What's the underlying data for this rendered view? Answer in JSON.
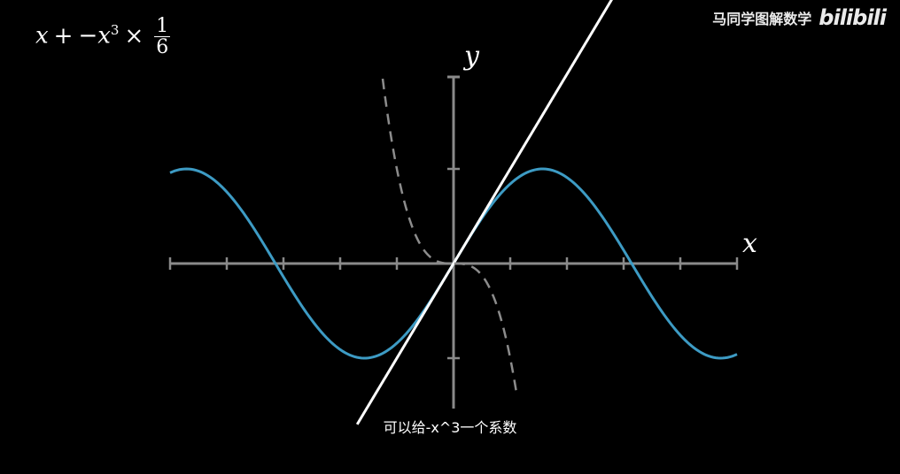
{
  "formula": {
    "x": "x",
    "plus": "+",
    "neg_x": "−x",
    "power": "3",
    "times": "×",
    "numerator": "1",
    "denominator": "6"
  },
  "watermark": {
    "channel": "马同学图解数学",
    "logo": "bilibili"
  },
  "subtitle": "可以给-x^3一个系数",
  "colors": {
    "background": "#000000",
    "axes": "#8a8a8a",
    "sine": "#3d9bc4",
    "tangent_line": "#ffffff",
    "cubic_term": "#8c8c8c"
  },
  "chart_data": {
    "type": "line",
    "xlabel": "x",
    "ylabel": "y",
    "xlim": [
      -5,
      5
    ],
    "ylim": [
      -1.5,
      2
    ],
    "xticks": [
      -5,
      -4,
      -3,
      -2,
      -1,
      1,
      2,
      3,
      4,
      5
    ],
    "yticks": [
      -1,
      1
    ],
    "series": [
      {
        "kind": "function",
        "expression": "sin(x)",
        "domain": [
          -5,
          5
        ],
        "style": "solid",
        "color": "#3d9bc4"
      },
      {
        "kind": "function",
        "expression": "x",
        "domain": [
          -1.7,
          3.2
        ],
        "style": "solid",
        "color": "#ffffff"
      },
      {
        "kind": "function",
        "expression": "-x^3",
        "domain": [
          -1.25,
          1.11
        ],
        "style": "dashed",
        "color": "#8c8c8c"
      }
    ]
  }
}
